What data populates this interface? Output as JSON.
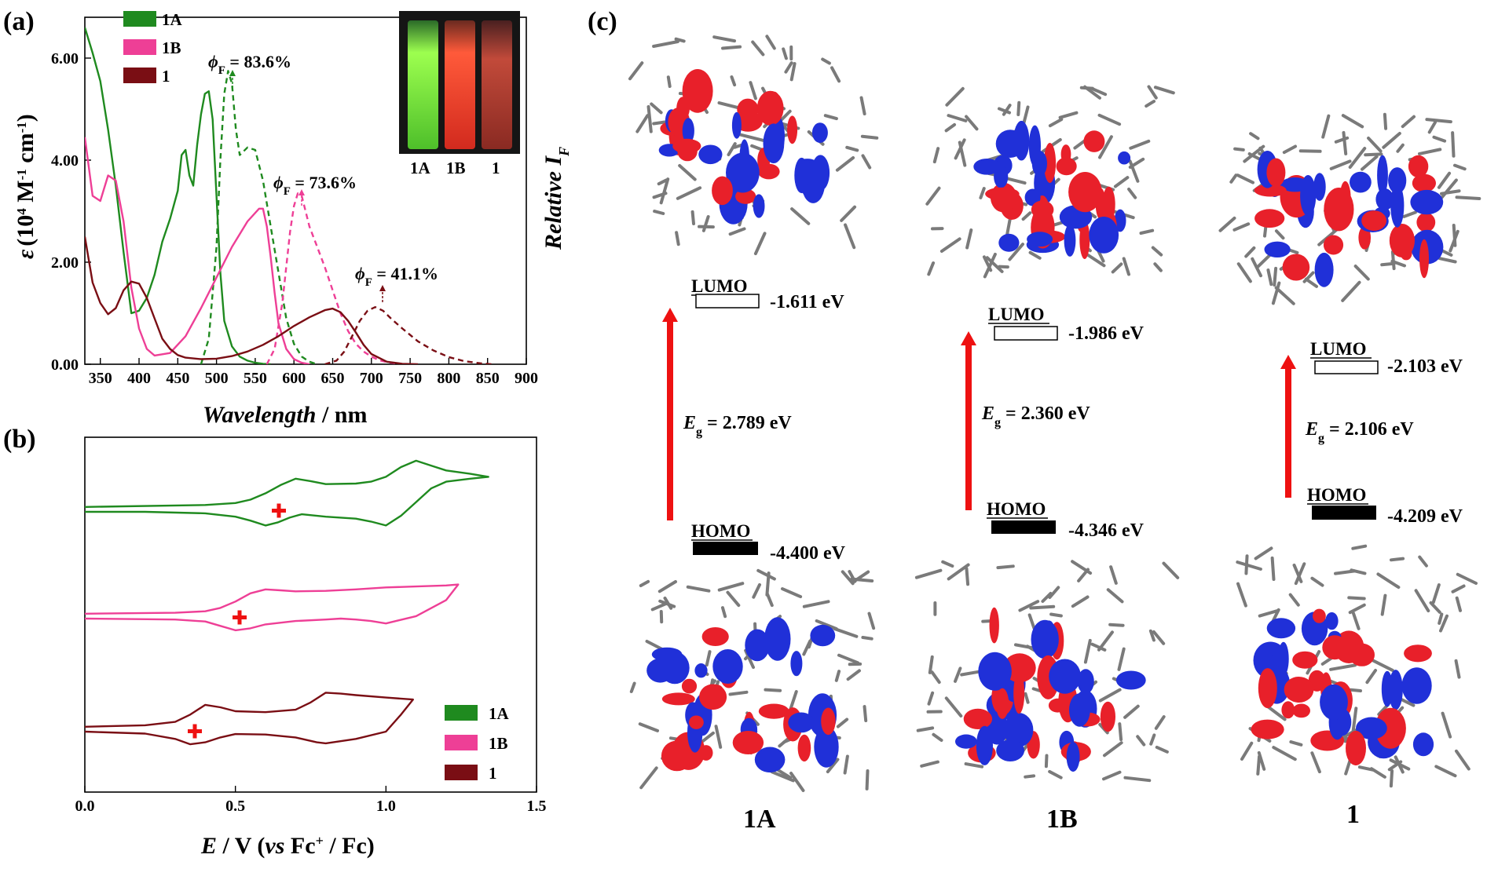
{
  "colors": {
    "1A": "#1f8a1f",
    "1B": "#ee3f96",
    "1": "#7a0e14",
    "black": "#1a1a1a",
    "red_arrow": "#ee1111",
    "orbital_red": "#e8202a",
    "orbital_blue": "#2030d8"
  },
  "panel_a": {
    "letter": "(a)",
    "ylabel_eps": "ε",
    "ylabel_rest": "(10",
    "ylabel_rest_sup": "4",
    "ylabel_rest2": " M",
    "ylabel_rest_sup2": "-1",
    "ylabel_rest3": " cm",
    "ylabel_rest_sup3": "-1",
    "ylabel_rest4": ")",
    "y2label": "Relative I",
    "y2label_sub": "F",
    "xlabel_italic": "Wavelength",
    "xlabel_rest": " / nm",
    "legend": [
      "1A",
      "1B",
      "1"
    ],
    "inset_labels": [
      "1A",
      "1B",
      "1"
    ],
    "phi_annotations": [
      {
        "symbol": "ϕ",
        "sub": "F",
        "text": " = 83.6%"
      },
      {
        "symbol": "ϕ",
        "sub": "F",
        "text": " = 73.6%"
      },
      {
        "symbol": "ϕ",
        "sub": "F",
        "text": " = 41.1%"
      }
    ]
  },
  "panel_b": {
    "letter": "(b)",
    "xlabel_e": "E",
    "xlabel_mid": " / V (",
    "xlabel_vs": "vs",
    "xlabel_fc": " Fc",
    "xlabel_plus": "+",
    "xlabel_end": " / Fc)",
    "legend": [
      "1A",
      "1B",
      "1"
    ]
  },
  "panel_c": {
    "letter": "(c)",
    "molecules": [
      {
        "name": "1A",
        "lumo_label": "LUMO",
        "lumo_energy": "-1.611 eV",
        "homo_label": "HOMO",
        "homo_energy": "-4.400 eV",
        "eg_symbol": "E",
        "eg_sub": "g",
        "eg_value": " = 2.789 eV"
      },
      {
        "name": "1B",
        "lumo_label": "LUMO",
        "lumo_energy": "-1.986 eV",
        "homo_label": "HOMO",
        "homo_energy": "-4.346 eV",
        "eg_symbol": "E",
        "eg_sub": "g",
        "eg_value": " = 2.360 eV"
      },
      {
        "name": "1",
        "lumo_label": "LUMO",
        "lumo_energy": "-2.103 eV",
        "homo_label": "HOMO",
        "homo_energy": "-4.209 eV",
        "eg_symbol": "E",
        "eg_sub": "g",
        "eg_value": " = 2.106 eV"
      }
    ]
  },
  "chart_data": [
    {
      "type": "line",
      "panel": "a",
      "xlim": [
        330,
        900
      ],
      "ylim": [
        0,
        6.8
      ],
      "xticks": [
        350,
        400,
        450,
        500,
        550,
        600,
        650,
        700,
        750,
        800,
        850,
        900
      ],
      "yticks": [
        0,
        2,
        4,
        6
      ],
      "ytick_labels": [
        "0.00",
        "2.00",
        "4.00",
        "6.00"
      ],
      "series": [
        {
          "name": "1A",
          "kind": "absorption",
          "x": [
            330,
            340,
            350,
            360,
            370,
            380,
            390,
            400,
            410,
            420,
            430,
            440,
            450,
            455,
            460,
            465,
            470,
            475,
            480,
            485,
            490,
            495,
            500,
            505,
            510,
            520,
            530,
            540,
            550,
            560,
            570
          ],
          "y": [
            6.6,
            6.1,
            5.55,
            4.6,
            3.5,
            2.2,
            1.0,
            1.05,
            1.3,
            1.75,
            2.4,
            2.85,
            3.4,
            4.1,
            4.2,
            3.7,
            3.5,
            4.3,
            4.9,
            5.3,
            5.35,
            4.8,
            3.3,
            1.8,
            0.85,
            0.35,
            0.15,
            0.07,
            0.03,
            0.01,
            0
          ]
        },
        {
          "name": "1A",
          "kind": "emission",
          "x": [
            480,
            490,
            500,
            505,
            510,
            515,
            520,
            525,
            530,
            540,
            550,
            560,
            570,
            580,
            590,
            600,
            610,
            620,
            630
          ],
          "y": [
            0,
            0.5,
            2.3,
            4.0,
            5.3,
            5.75,
            5.5,
            4.6,
            4.1,
            4.25,
            4.2,
            3.6,
            2.7,
            1.8,
            0.9,
            0.4,
            0.15,
            0.05,
            0
          ]
        },
        {
          "name": "1B",
          "kind": "absorption",
          "x": [
            330,
            340,
            350,
            360,
            370,
            380,
            390,
            400,
            410,
            420,
            440,
            460,
            480,
            500,
            520,
            540,
            555,
            560,
            565,
            570,
            575,
            580,
            590,
            600,
            610,
            620
          ],
          "y": [
            4.45,
            3.3,
            3.2,
            3.7,
            3.6,
            2.8,
            1.5,
            0.7,
            0.3,
            0.17,
            0.22,
            0.55,
            1.1,
            1.7,
            2.3,
            2.8,
            3.05,
            3.05,
            2.7,
            2.1,
            1.4,
            0.8,
            0.3,
            0.1,
            0.03,
            0
          ]
        },
        {
          "name": "1B",
          "kind": "emission",
          "x": [
            565,
            575,
            585,
            595,
            600,
            605,
            610,
            615,
            620,
            630,
            640,
            650,
            660,
            670,
            680,
            690,
            700,
            710,
            720,
            740
          ],
          "y": [
            0,
            0.3,
            1.2,
            2.6,
            3.1,
            3.35,
            3.3,
            3.0,
            2.7,
            2.3,
            1.9,
            1.45,
            1.0,
            0.65,
            0.4,
            0.25,
            0.15,
            0.08,
            0.04,
            0
          ]
        },
        {
          "name": "1",
          "kind": "absorption",
          "x": [
            330,
            340,
            350,
            360,
            370,
            380,
            390,
            400,
            410,
            420,
            430,
            440,
            450,
            460,
            480,
            500,
            520,
            540,
            560,
            580,
            600,
            620,
            640,
            650,
            660,
            670,
            680,
            690,
            700,
            720,
            740,
            760
          ],
          "y": [
            2.5,
            1.6,
            1.2,
            0.98,
            1.1,
            1.45,
            1.62,
            1.58,
            1.3,
            0.9,
            0.5,
            0.3,
            0.18,
            0.13,
            0.1,
            0.11,
            0.16,
            0.25,
            0.38,
            0.55,
            0.75,
            0.92,
            1.06,
            1.09,
            1.02,
            0.85,
            0.62,
            0.38,
            0.2,
            0.05,
            0.01,
            0
          ]
        },
        {
          "name": "1",
          "kind": "emission",
          "x": [
            640,
            655,
            665,
            675,
            685,
            695,
            705,
            715,
            725,
            740,
            760,
            780,
            800,
            820,
            840,
            855
          ],
          "y": [
            0,
            0.07,
            0.25,
            0.55,
            0.85,
            1.05,
            1.12,
            1.05,
            0.9,
            0.7,
            0.45,
            0.27,
            0.14,
            0.06,
            0.02,
            0
          ]
        }
      ]
    },
    {
      "type": "line",
      "panel": "b",
      "xlim": [
        0,
        1.5
      ],
      "xticks": [
        0.0,
        0.5,
        1.0,
        1.5
      ],
      "xtick_labels": [
        "0.0",
        "0.5",
        "1.0",
        "1.5"
      ],
      "current_units": "arbitrary (curves offset vertically)",
      "series": [
        {
          "name": "1A",
          "e_half": 0.65,
          "offset": 2.0,
          "x": [
            0.0,
            0.4,
            0.5,
            0.55,
            0.6,
            0.65,
            0.7,
            0.75,
            0.8,
            0.9,
            0.95,
            1.0,
            1.05,
            1.1,
            1.15,
            1.2,
            1.28,
            1.34,
            1.28,
            1.2,
            1.15,
            1.1,
            1.05,
            1.0,
            0.95,
            0.9,
            0.8,
            0.72,
            0.68,
            0.64,
            0.6,
            0.55,
            0.5,
            0.4,
            0.2,
            0.0
          ],
          "y": [
            0.1,
            0.14,
            0.18,
            0.25,
            0.38,
            0.55,
            0.68,
            0.63,
            0.57,
            0.58,
            0.62,
            0.72,
            0.92,
            1.05,
            0.95,
            0.85,
            0.78,
            0.72,
            0.68,
            0.62,
            0.48,
            0.2,
            -0.08,
            -0.28,
            -0.2,
            -0.14,
            -0.1,
            -0.05,
            -0.12,
            -0.22,
            -0.28,
            -0.18,
            -0.1,
            -0.03,
            0.0,
            0.0
          ]
        },
        {
          "name": "1B",
          "e_half": 0.51,
          "offset": 1.0,
          "x": [
            0.0,
            0.3,
            0.4,
            0.45,
            0.5,
            0.55,
            0.6,
            0.65,
            0.7,
            0.8,
            0.9,
            1.0,
            1.1,
            1.2,
            1.24,
            1.2,
            1.1,
            1.0,
            0.95,
            0.9,
            0.85,
            0.8,
            0.7,
            0.6,
            0.55,
            0.5,
            0.45,
            0.4,
            0.3,
            0.0
          ],
          "y": [
            0.1,
            0.12,
            0.15,
            0.22,
            0.35,
            0.52,
            0.6,
            0.58,
            0.56,
            0.57,
            0.6,
            0.64,
            0.66,
            0.68,
            0.7,
            0.38,
            0.05,
            -0.1,
            -0.05,
            -0.02,
            0.0,
            -0.02,
            -0.05,
            -0.12,
            -0.2,
            -0.24,
            -0.15,
            -0.06,
            -0.02,
            0.0
          ]
        },
        {
          "name": "1",
          "e_half": 0.37,
          "offset": 0.0,
          "x": [
            0.0,
            0.2,
            0.3,
            0.35,
            0.4,
            0.45,
            0.5,
            0.6,
            0.7,
            0.75,
            0.8,
            0.85,
            0.9,
            1.0,
            1.09,
            1.05,
            1.0,
            0.9,
            0.8,
            0.77,
            0.7,
            0.6,
            0.5,
            0.45,
            0.4,
            0.35,
            0.3,
            0.2,
            0.0
          ],
          "y": [
            0.1,
            0.13,
            0.2,
            0.35,
            0.55,
            0.5,
            0.42,
            0.4,
            0.45,
            0.6,
            0.8,
            0.78,
            0.75,
            0.7,
            0.66,
            0.35,
            0.0,
            -0.15,
            -0.24,
            -0.22,
            -0.12,
            -0.06,
            -0.05,
            -0.12,
            -0.22,
            -0.26,
            -0.15,
            -0.04,
            0.0
          ]
        }
      ]
    }
  ]
}
